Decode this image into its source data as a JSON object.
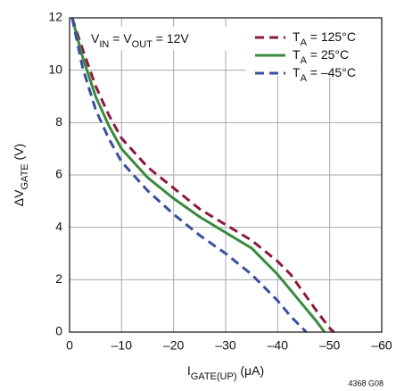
{
  "chart_data": {
    "type": "line",
    "annotation": "VIN = VOUT = 12V",
    "xlabel": "IGATE(UP) (μA)",
    "ylabel": "ΔVGATE (V)",
    "footnote": "4368 G08",
    "xlim": [
      0,
      -60
    ],
    "ylim": [
      0,
      12
    ],
    "xticks": [
      0,
      {
        "value": -10,
        "label": "–10"
      },
      {
        "value": -20,
        "label": "–20"
      },
      {
        "value": -30,
        "label": "–30"
      },
      {
        "value": -40,
        "label": "–40"
      },
      {
        "value": -50,
        "label": "–50"
      },
      {
        "value": -60,
        "label": "–60"
      }
    ],
    "yticks": [
      0,
      2,
      4,
      6,
      8,
      10,
      12
    ],
    "grid": true,
    "legend": "upper right",
    "series": [
      {
        "name": "TA = 125°C",
        "color": "#8b1a3c",
        "dashed": true,
        "x": [
          -0.5,
          -2.5,
          -5,
          -7.5,
          -10,
          -15,
          -20,
          -25,
          -30,
          -35,
          -40,
          -42.5,
          -45,
          -47.5,
          -50,
          -50.8
        ],
        "values": [
          12,
          10.8,
          9.4,
          8.3,
          7.4,
          6.3,
          5.5,
          4.7,
          4.1,
          3.5,
          2.7,
          2.2,
          1.5,
          0.8,
          0.15,
          0
        ]
      },
      {
        "name": "TA = 25°C",
        "color": "#3a8a3e",
        "dashed": false,
        "x": [
          -0.5,
          -2.5,
          -5,
          -7.5,
          -10,
          -15,
          -20,
          -25,
          -30,
          -35,
          -40,
          -42.5,
          -45,
          -47.5,
          -49
        ],
        "values": [
          12,
          10.5,
          9.0,
          7.9,
          7.0,
          5.9,
          5.1,
          4.4,
          3.8,
          3.2,
          2.2,
          1.6,
          1.0,
          0.4,
          0
        ]
      },
      {
        "name": "TA = –45°C",
        "color": "#3a4fa0",
        "dashed": true,
        "x": [
          -0.5,
          -2.5,
          -5,
          -7.5,
          -10,
          -15,
          -20,
          -25,
          -30,
          -35,
          -40,
          -42.5,
          -45.5
        ],
        "values": [
          12,
          10.1,
          8.5,
          7.4,
          6.5,
          5.4,
          4.5,
          3.7,
          3.0,
          2.2,
          1.2,
          0.6,
          0
        ]
      }
    ]
  }
}
